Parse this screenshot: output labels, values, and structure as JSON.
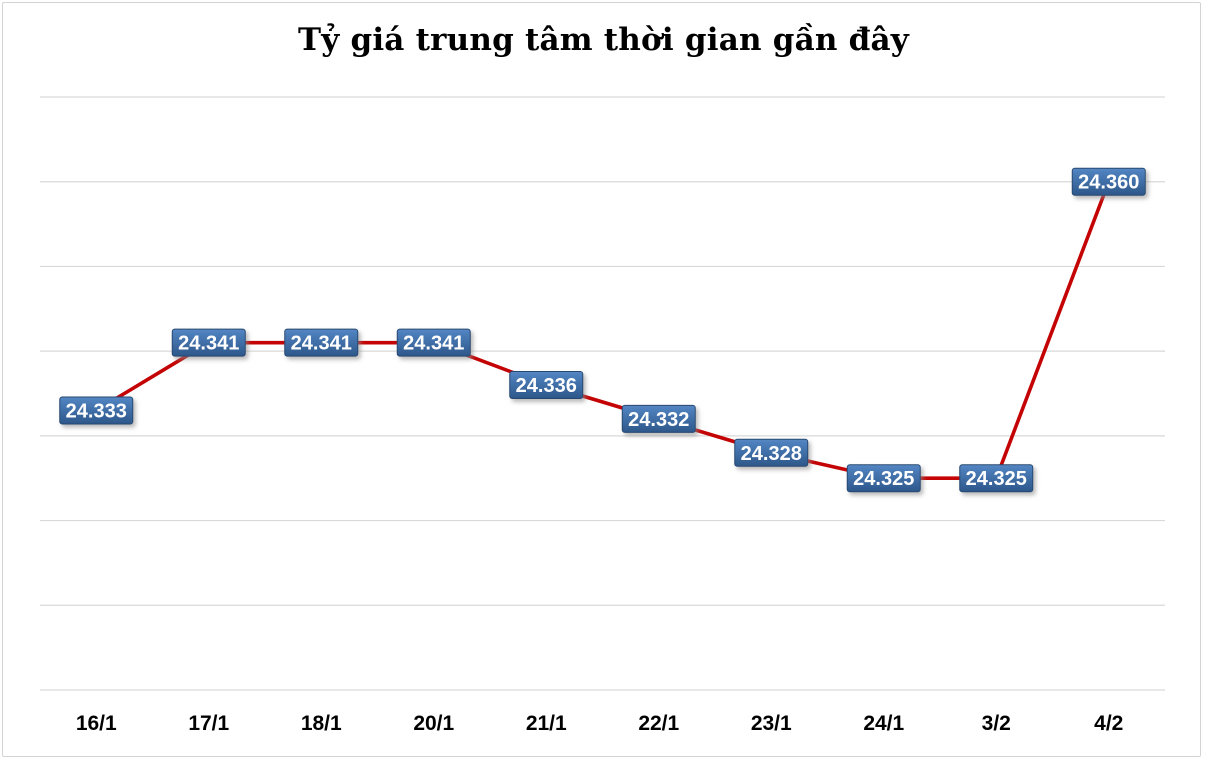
{
  "chart_data": {
    "type": "line",
    "title": "Tỷ giá trung tâm thời gian gần đây",
    "categories": [
      "16/1",
      "17/1",
      "18/1",
      "20/1",
      "21/1",
      "22/1",
      "23/1",
      "24/1",
      "3/2",
      "4/2"
    ],
    "values": [
      24333,
      24341,
      24341,
      24341,
      24336,
      24332,
      24328,
      24325,
      24325,
      24360
    ],
    "point_labels": [
      "24.333",
      "24.341",
      "24.341",
      "24.341",
      "24.336",
      "24.332",
      "24.328",
      "24.325",
      "24.325",
      "24.360"
    ],
    "xlabel": "",
    "ylabel": "",
    "ylim": [
      24300,
      24370
    ],
    "y_grid_step": 10,
    "y_tick_labels_visible": false,
    "legend": "none",
    "grid": "horizontal",
    "colors": {
      "line": "#C40404",
      "label_box_top": "#5989C4",
      "label_box_bottom": "#2D578A",
      "label_box_border": "#264972",
      "label_text": "#FFFFFF",
      "gridline": "#D9D9D9",
      "axis_text": "#000000",
      "title_text": "#000000",
      "chart_border": "#D3D3D3",
      "background": "#FFFFFF"
    }
  }
}
